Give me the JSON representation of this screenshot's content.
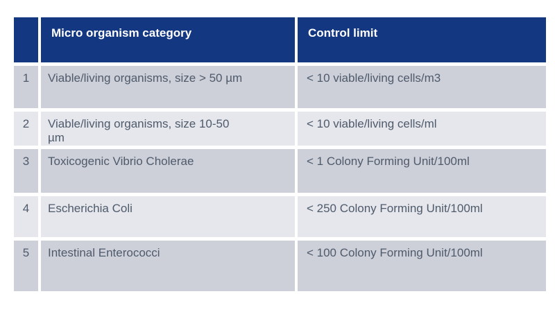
{
  "table": {
    "header": {
      "category_label": "Micro organism category",
      "limit_label": "Control limit"
    },
    "rows": [
      {
        "num": "1",
        "category": "Viable/living organisms, size > 50 µm",
        "limit": "< 10 viable/living cells/m3"
      },
      {
        "num": "2",
        "category": "Viable/living organisms, size 10-50\nµm",
        "limit": "< 10 viable/living cells/ml"
      },
      {
        "num": "3",
        "category": "Toxicogenic Vibrio Cholerae",
        "limit": "< 1 Colony Forming Unit/100ml"
      },
      {
        "num": "4",
        "category": "Escherichia Coli",
        "limit": "< 250 Colony Forming Unit/100ml"
      },
      {
        "num": "5",
        "category": "Intestinal Enterococci",
        "limit": "< 100 Colony Forming Unit/100ml"
      }
    ],
    "colors": {
      "header_bg": "#143782",
      "header_text": "#FFFFFF",
      "row_odd_bg": "#CDD0D9",
      "row_even_bg": "#E5E7EC",
      "body_text": "#4F5A6B",
      "separator": "#FFFFFF"
    }
  }
}
